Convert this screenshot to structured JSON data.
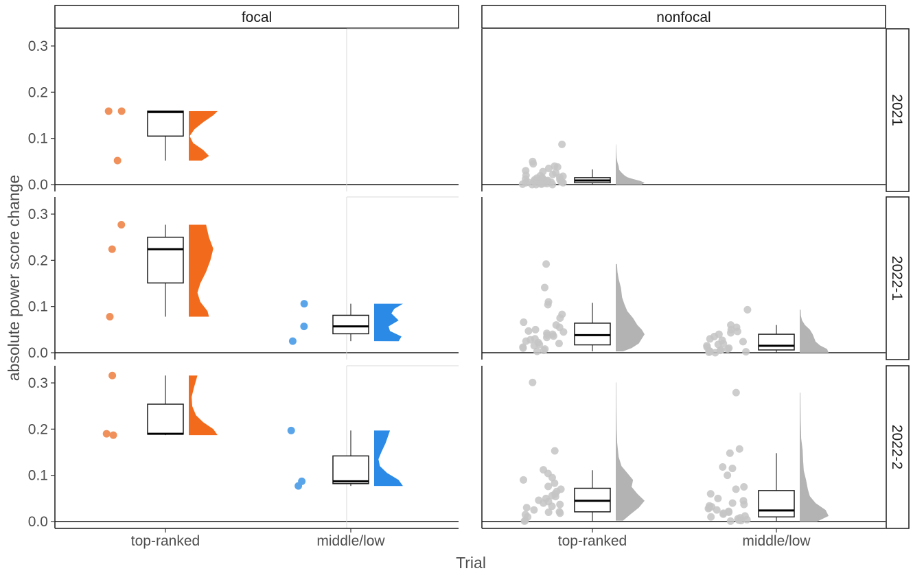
{
  "chart_data": {
    "type": "raincloud-boxplot",
    "xlabel": "Trial",
    "ylabel": "absolute power score change",
    "ylim": [
      0,
      0.33
    ],
    "yticks": [
      "0.0",
      "0.1",
      "0.2",
      "0.3"
    ],
    "ytick_values": [
      0,
      0.1,
      0.2,
      0.3
    ],
    "categories": [
      "top-ranked",
      "middle/low"
    ],
    "column_facets": [
      "focal",
      "nonfocal"
    ],
    "row_facets": [
      "2021",
      "2022-1",
      "2022-2"
    ],
    "grid": false,
    "colors": {
      "focal_top": "#f26b1d",
      "focal_top_points": "#f0905a",
      "focal_mid": "#2b8ae6",
      "focal_mid_points": "#5aa5ea",
      "nonfocal": "#b3b3b3",
      "nonfocal_points": "#c4c4c4"
    },
    "panels": [
      {
        "row": "2021",
        "col": "focal",
        "groups": [
          {
            "category": "top-ranked",
            "points": [
              0.159,
              0.159,
              0.052
            ],
            "box": {
              "q1": 0.105,
              "median": 0.157,
              "q3": 0.159,
              "low": 0.052,
              "high": 0.159
            },
            "density": [
              [
                0.052,
                0.45
              ],
              [
                0.062,
                0.7
              ],
              [
                0.075,
                0.5
              ],
              [
                0.09,
                0.15
              ],
              [
                0.105,
                0.03
              ],
              [
                0.12,
                0.2
              ],
              [
                0.135,
                0.5
              ],
              [
                0.15,
                0.85
              ],
              [
                0.159,
                1.0
              ]
            ]
          }
        ]
      },
      {
        "row": "2021",
        "col": "nonfocal",
        "groups": [
          {
            "category": "top-ranked",
            "points": [
              0.087,
              0.05,
              0.045,
              0.04,
              0.038,
              0.035,
              0.03,
              0.028,
              0.025,
              0.022,
              0.02,
              0.019,
              0.018,
              0.016,
              0.015,
              0.014,
              0.013,
              0.012,
              0.011,
              0.01,
              0.009,
              0.009,
              0.008,
              0.008,
              0.007,
              0.006,
              0.006,
              0.005,
              0.005,
              0.004,
              0.004,
              0.003,
              0.003,
              0.002,
              0.002,
              0.001,
              0.001,
              0.0,
              0.0,
              0.0
            ],
            "box": {
              "q1": 0.004,
              "median": 0.009,
              "q3": 0.015,
              "low": 0.0,
              "high": 0.033
            },
            "density": [
              [
                0.0,
                0.9
              ],
              [
                0.004,
                1.0
              ],
              [
                0.008,
                0.85
              ],
              [
                0.012,
                0.6
              ],
              [
                0.016,
                0.4
              ],
              [
                0.02,
                0.3
              ],
              [
                0.026,
                0.2
              ],
              [
                0.032,
                0.12
              ],
              [
                0.04,
                0.1
              ],
              [
                0.048,
                0.06
              ],
              [
                0.058,
                0.03
              ],
              [
                0.07,
                0.02
              ],
              [
                0.087,
                0.01
              ]
            ]
          }
        ]
      },
      {
        "row": "2022-1",
        "col": "focal",
        "groups": [
          {
            "category": "top-ranked",
            "points": [
              0.277,
              0.224,
              0.078
            ],
            "box": {
              "q1": 0.151,
              "median": 0.224,
              "q3": 0.25,
              "low": 0.078,
              "high": 0.277
            },
            "density": [
              [
                0.078,
                0.7
              ],
              [
                0.09,
                0.65
              ],
              [
                0.11,
                0.4
              ],
              [
                0.13,
                0.3
              ],
              [
                0.15,
                0.4
              ],
              [
                0.175,
                0.6
              ],
              [
                0.2,
                0.75
              ],
              [
                0.225,
                0.85
              ],
              [
                0.25,
                0.7
              ],
              [
                0.277,
                0.6
              ]
            ]
          },
          {
            "category": "middle/low",
            "points": [
              0.106,
              0.057,
              0.025
            ],
            "box": {
              "q1": 0.041,
              "median": 0.057,
              "q3": 0.081,
              "low": 0.025,
              "high": 0.106
            },
            "density": [
              [
                0.025,
                0.85
              ],
              [
                0.035,
                0.95
              ],
              [
                0.047,
                0.55
              ],
              [
                0.057,
                0.5
              ],
              [
                0.07,
                0.85
              ],
              [
                0.085,
                0.6
              ],
              [
                0.095,
                0.7
              ],
              [
                0.106,
                1.0
              ]
            ]
          }
        ]
      },
      {
        "row": "2022-1",
        "col": "nonfocal",
        "groups": [
          {
            "category": "top-ranked",
            "points": [
              0.192,
              0.141,
              0.11,
              0.104,
              0.083,
              0.075,
              0.066,
              0.06,
              0.055,
              0.05,
              0.047,
              0.045,
              0.042,
              0.04,
              0.038,
              0.036,
              0.033,
              0.03,
              0.028,
              0.025,
              0.022,
              0.02,
              0.018,
              0.015,
              0.012,
              0.01,
              0.008,
              0.005,
              0.003
            ],
            "box": {
              "q1": 0.017,
              "median": 0.038,
              "q3": 0.064,
              "low": 0.003,
              "high": 0.108
            },
            "density": [
              [
                0.003,
                0.25
              ],
              [
                0.01,
                0.55
              ],
              [
                0.02,
                0.8
              ],
              [
                0.03,
                0.9
              ],
              [
                0.04,
                1.0
              ],
              [
                0.05,
                0.9
              ],
              [
                0.06,
                0.75
              ],
              [
                0.075,
                0.6
              ],
              [
                0.09,
                0.4
              ],
              [
                0.105,
                0.3
              ],
              [
                0.12,
                0.22
              ],
              [
                0.14,
                0.18
              ],
              [
                0.16,
                0.1
              ],
              [
                0.175,
                0.06
              ],
              [
                0.192,
                0.04
              ]
            ]
          },
          {
            "category": "middle/low",
            "points": [
              0.093,
              0.06,
              0.055,
              0.05,
              0.046,
              0.043,
              0.04,
              0.035,
              0.03,
              0.027,
              0.024,
              0.02,
              0.018,
              0.015,
              0.012,
              0.01,
              0.008,
              0.006,
              0.005,
              0.004,
              0.003,
              0.002,
              0.001,
              0.0
            ],
            "box": {
              "q1": 0.006,
              "median": 0.015,
              "q3": 0.04,
              "low": 0.0,
              "high": 0.06
            },
            "density": [
              [
                0.0,
                1.0
              ],
              [
                0.008,
                0.95
              ],
              [
                0.016,
                0.7
              ],
              [
                0.024,
                0.55
              ],
              [
                0.032,
                0.5
              ],
              [
                0.04,
                0.45
              ],
              [
                0.05,
                0.35
              ],
              [
                0.06,
                0.18
              ],
              [
                0.07,
                0.08
              ],
              [
                0.08,
                0.04
              ],
              [
                0.093,
                0.03
              ]
            ]
          }
        ]
      },
      {
        "row": "2022-2",
        "col": "focal",
        "groups": [
          {
            "category": "top-ranked",
            "points": [
              0.316,
              0.19,
              0.187
            ],
            "box": {
              "q1": 0.189,
              "median": 0.19,
              "q3": 0.254,
              "low": 0.187,
              "high": 0.316
            },
            "density": [
              [
                0.187,
                1.0
              ],
              [
                0.2,
                0.85
              ],
              [
                0.215,
                0.5
              ],
              [
                0.23,
                0.25
              ],
              [
                0.25,
                0.12
              ],
              [
                0.27,
                0.1
              ],
              [
                0.29,
                0.18
              ],
              [
                0.316,
                0.3
              ]
            ]
          },
          {
            "category": "middle/low",
            "points": [
              0.197,
              0.087,
              0.077
            ],
            "box": {
              "q1": 0.082,
              "median": 0.087,
              "q3": 0.142,
              "low": 0.077,
              "high": 0.197
            },
            "density": [
              [
                0.077,
                1.0
              ],
              [
                0.09,
                0.85
              ],
              [
                0.105,
                0.45
              ],
              [
                0.12,
                0.2
              ],
              [
                0.135,
                0.15
              ],
              [
                0.15,
                0.25
              ],
              [
                0.17,
                0.4
              ],
              [
                0.197,
                0.55
              ]
            ]
          }
        ]
      },
      {
        "row": "2022-2",
        "col": "nonfocal",
        "groups": [
          {
            "category": "top-ranked",
            "points": [
              0.301,
              0.153,
              0.112,
              0.104,
              0.095,
              0.09,
              0.083,
              0.076,
              0.07,
              0.065,
              0.06,
              0.056,
              0.054,
              0.05,
              0.046,
              0.043,
              0.04,
              0.037,
              0.033,
              0.03,
              0.025,
              0.021,
              0.02,
              0.018,
              0.015,
              0.01,
              0.002,
              0.001
            ],
            "box": {
              "q1": 0.021,
              "median": 0.045,
              "q3": 0.072,
              "low": 0.0,
              "high": 0.111
            },
            "density": [
              [
                0.002,
                0.25
              ],
              [
                0.015,
                0.5
              ],
              [
                0.03,
                0.8
              ],
              [
                0.045,
                1.0
              ],
              [
                0.06,
                0.75
              ],
              [
                0.075,
                0.55
              ],
              [
                0.09,
                0.6
              ],
              [
                0.105,
                0.4
              ],
              [
                0.12,
                0.2
              ],
              [
                0.14,
                0.1
              ],
              [
                0.17,
                0.05
              ],
              [
                0.2,
                0.03
              ],
              [
                0.25,
                0.02
              ],
              [
                0.301,
                0.015
              ]
            ]
          },
          {
            "category": "middle/low",
            "points": [
              0.279,
              0.157,
              0.148,
              0.118,
              0.115,
              0.1,
              0.075,
              0.07,
              0.06,
              0.05,
              0.045,
              0.04,
              0.037,
              0.034,
              0.032,
              0.03,
              0.028,
              0.025,
              0.022,
              0.02,
              0.018,
              0.016,
              0.012,
              0.01,
              0.008,
              0.006,
              0.004,
              0.003,
              0.002,
              0.001
            ],
            "box": {
              "q1": 0.01,
              "median": 0.024,
              "q3": 0.067,
              "low": 0.0,
              "high": 0.148
            },
            "density": [
              [
                0.0,
                0.6
              ],
              [
                0.012,
                1.0
              ],
              [
                0.025,
                0.9
              ],
              [
                0.04,
                0.55
              ],
              [
                0.055,
                0.35
              ],
              [
                0.07,
                0.28
              ],
              [
                0.09,
                0.22
              ],
              [
                0.11,
                0.14
              ],
              [
                0.13,
                0.12
              ],
              [
                0.155,
                0.1
              ],
              [
                0.18,
                0.05
              ],
              [
                0.22,
                0.03
              ],
              [
                0.279,
                0.02
              ]
            ]
          }
        ]
      }
    ]
  }
}
